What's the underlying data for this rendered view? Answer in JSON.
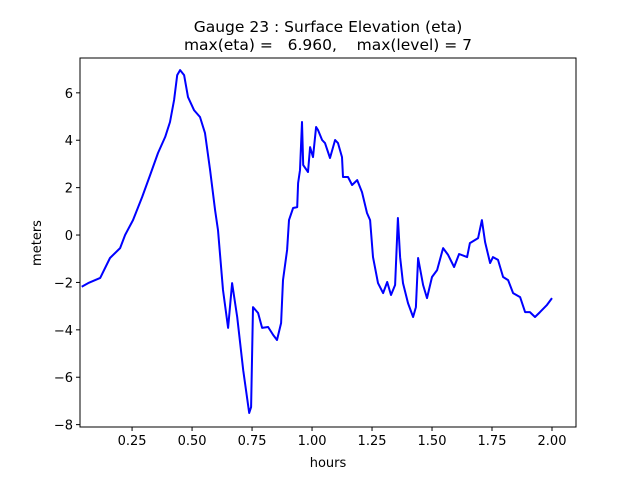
{
  "chart_data": {
    "type": "line",
    "title": "Gauge 23 : Surface Elevation (eta)",
    "subtitle": "max(eta) =   6.960,    max(level) = 7",
    "xlabel": "hours",
    "ylabel": "meters",
    "xlim": [
      0.033,
      2.1
    ],
    "ylim": [
      -8.1,
      7.47
    ],
    "xticks": [
      0.25,
      0.5,
      0.75,
      1.0,
      1.25,
      1.5,
      1.75,
      2.0
    ],
    "xtick_labels": [
      "0.25",
      "0.50",
      "0.75",
      "1.00",
      "1.25",
      "1.50",
      "1.75",
      "2.00"
    ],
    "yticks": [
      -8,
      -6,
      -4,
      -2,
      0,
      2,
      4,
      6
    ],
    "ytick_labels": [
      "−8",
      "−6",
      "−4",
      "−2",
      "0",
      "2",
      "4",
      "6"
    ],
    "grid": false,
    "series": [
      {
        "name": "eta",
        "color": "#0000ff",
        "x": [
          0.04,
          0.067,
          0.117,
          0.158,
          0.2,
          0.221,
          0.254,
          0.292,
          0.325,
          0.358,
          0.388,
          0.408,
          0.425,
          0.438,
          0.45,
          0.467,
          0.483,
          0.508,
          0.533,
          0.554,
          0.575,
          0.596,
          0.608,
          0.629,
          0.65,
          0.667,
          0.688,
          0.713,
          0.738,
          0.746,
          0.754,
          0.775,
          0.792,
          0.817,
          0.838,
          0.854,
          0.871,
          0.879,
          0.896,
          0.904,
          0.921,
          0.938,
          0.942,
          0.95,
          0.958,
          0.963,
          0.983,
          0.992,
          1.004,
          1.017,
          1.025,
          1.042,
          1.054,
          1.075,
          1.096,
          1.108,
          1.125,
          1.129,
          1.15,
          1.167,
          1.188,
          1.208,
          1.229,
          1.242,
          1.254,
          1.275,
          1.296,
          1.313,
          1.329,
          1.346,
          1.358,
          1.367,
          1.379,
          1.4,
          1.421,
          1.433,
          1.442,
          1.463,
          1.479,
          1.5,
          1.521,
          1.546,
          1.567,
          1.592,
          1.613,
          1.646,
          1.658,
          1.692,
          1.708,
          1.721,
          1.742,
          1.754,
          1.775,
          1.796,
          1.817,
          1.838,
          1.867,
          1.888,
          1.908,
          1.929,
          1.95,
          1.979,
          2.0
        ],
        "y": [
          -2.18,
          -2.03,
          -1.81,
          -0.97,
          -0.55,
          0.0,
          0.63,
          1.6,
          2.53,
          3.46,
          4.14,
          4.77,
          5.7,
          6.75,
          6.96,
          6.75,
          5.82,
          5.27,
          4.98,
          4.3,
          2.74,
          1.05,
          0.21,
          -2.32,
          -3.92,
          -2.03,
          -3.46,
          -5.7,
          -7.51,
          -7.26,
          -3.04,
          -3.29,
          -3.92,
          -3.88,
          -4.22,
          -4.43,
          -3.71,
          -1.9,
          -0.63,
          0.63,
          1.14,
          1.18,
          2.19,
          2.74,
          4.77,
          2.95,
          2.66,
          3.71,
          3.29,
          4.56,
          4.43,
          4.01,
          3.88,
          3.25,
          4.01,
          3.88,
          3.29,
          2.45,
          2.45,
          2.11,
          2.32,
          1.81,
          0.93,
          0.63,
          -0.93,
          -2.03,
          -2.45,
          -1.98,
          -2.53,
          -2.11,
          0.72,
          -0.93,
          -2.03,
          -2.87,
          -3.46,
          -3.04,
          -0.97,
          -2.11,
          -2.66,
          -1.77,
          -1.48,
          -0.55,
          -0.84,
          -1.35,
          -0.8,
          -0.93,
          -0.34,
          -0.13,
          0.63,
          -0.3,
          -1.18,
          -0.93,
          -1.05,
          -1.77,
          -1.9,
          -2.45,
          -2.62,
          -3.25,
          -3.25,
          -3.46,
          -3.25,
          -2.95,
          -2.66
        ]
      }
    ]
  }
}
